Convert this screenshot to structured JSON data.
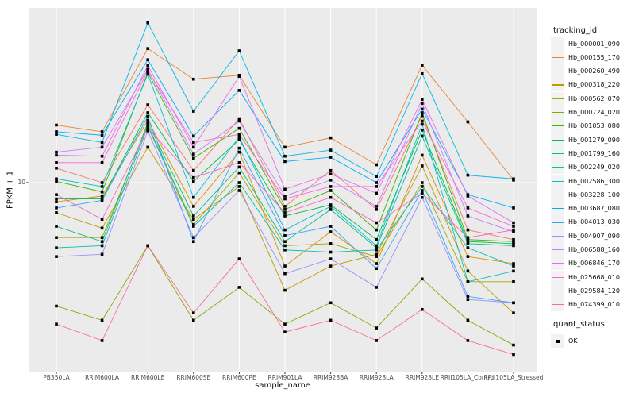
{
  "figure": {
    "y_axis_title": "FPKM + 1",
    "x_axis_title": "sample_name"
  },
  "legend": {
    "tracking_title": "tracking_id",
    "quant_title": "quant_status",
    "quant_ok_label": "OK",
    "key_background": "#F2F2F2"
  },
  "chart_data": {
    "type": "line",
    "title": "",
    "xlabel": "sample_name",
    "ylabel": "FPKM + 1",
    "yscale": "log10",
    "yticks": [
      10
    ],
    "ylim": [
      2.3,
      39.3
    ],
    "grid": true,
    "legend_position": "right",
    "panel_bg": "#EBEBEB",
    "grid_color": "#FFFFFF",
    "tick_color": "#333333",
    "point_shape": "filled-square",
    "point_color": "#000000",
    "quant_status": "OK",
    "categories": [
      "PB350LA",
      "RRIM600LA",
      "RRIM600LE",
      "RRIM600SE",
      "RRIM600PE",
      "RRIM901LA",
      "RRIM928BA",
      "RRIM928LA",
      "RRIM928LE",
      "RRII105LA_Control",
      "RRII105LA_Stressed"
    ],
    "series": [
      {
        "name": "Hb_000001_090",
        "color": "#F8766D",
        "values": [
          11.2,
          10.0,
          18.4,
          11.0,
          16.5,
          8.3,
          11.0,
          8.1,
          16.9,
          6.9,
          6.4
        ]
      },
      {
        "name": "Hb_000155_170",
        "color": "#EA8331",
        "values": [
          15.7,
          14.9,
          28.6,
          22.5,
          23.2,
          13.2,
          14.2,
          11.5,
          25.1,
          16.1,
          10.2
        ]
      },
      {
        "name": "Hb_000260_490",
        "color": "#D89000",
        "values": [
          8.6,
          9.0,
          16.3,
          8.3,
          12.7,
          5.2,
          6.8,
          5.3,
          12.4,
          5.6,
          5.3
        ]
      },
      {
        "name": "Hb_000318_220",
        "color": "#C09B00",
        "values": [
          7.9,
          7.0,
          13.2,
          7.5,
          9.7,
          4.3,
          5.2,
          5.7,
          11.4,
          5.0,
          3.6
        ]
      },
      {
        "name": "Hb_000562_070",
        "color": "#A3A500",
        "values": [
          6.5,
          6.5,
          15.7,
          7.2,
          10.8,
          6.1,
          6.2,
          5.6,
          10.0,
          4.6,
          4.6
        ]
      },
      {
        "name": "Hb_000724_020",
        "color": "#7CAE00",
        "values": [
          3.8,
          3.4,
          6.1,
          3.4,
          4.4,
          3.3,
          3.9,
          3.2,
          4.7,
          3.4,
          2.8
        ]
      },
      {
        "name": "Hb_001053_080",
        "color": "#39B600",
        "values": [
          10.1,
          9.3,
          23.7,
          12.1,
          15.3,
          8.1,
          9.4,
          6.9,
          17.3,
          6.4,
          6.3
        ]
      },
      {
        "name": "Hb_001279_090",
        "color": "#00BB4E",
        "values": [
          8.8,
          8.8,
          17.3,
          10.1,
          14.0,
          7.7,
          8.4,
          6.4,
          15.1,
          6.3,
          6.2
        ]
      },
      {
        "name": "Hb_001799_160",
        "color": "#00C087",
        "values": [
          7.1,
          6.3,
          16.0,
          7.7,
          11.3,
          6.3,
          8.1,
          6.0,
          14.4,
          6.2,
          6.1
        ]
      },
      {
        "name": "Hb_002249_020",
        "color": "#00C0B2",
        "values": [
          6.0,
          6.1,
          15.5,
          7.1,
          10.0,
          5.9,
          5.8,
          5.9,
          9.7,
          6.0,
          5.2
        ]
      },
      {
        "name": "Hb_002586_300",
        "color": "#00BFD3",
        "values": [
          10.3,
          9.7,
          23.4,
          8.9,
          14.3,
          6.9,
          8.3,
          6.1,
          15.8,
          4.6,
          5.0
        ]
      },
      {
        "name": "Hb_003228_100",
        "color": "#00B8E7",
        "values": [
          14.6,
          13.7,
          35.0,
          17.5,
          28.1,
          12.3,
          12.9,
          10.5,
          23.5,
          10.6,
          10.3
        ]
      },
      {
        "name": "Hb_003687_080",
        "color": "#00ACFC",
        "values": [
          14.9,
          14.5,
          26.2,
          14.4,
          20.6,
          11.8,
          12.2,
          10.0,
          17.8,
          9.1,
          8.2
        ]
      },
      {
        "name": "Hb_004013_030",
        "color": "#35A2FF",
        "values": [
          8.2,
          8.7,
          16.8,
          6.3,
          13.1,
          6.6,
          7.1,
          5.1,
          9.4,
          4.1,
          3.9
        ]
      },
      {
        "name": "Hb_004907_090",
        "color": "#9590FF",
        "values": [
          5.6,
          5.7,
          15.0,
          6.5,
          9.4,
          4.9,
          5.5,
          4.4,
          8.9,
          4.0,
          3.9
        ]
      },
      {
        "name": "Hb_006588_160",
        "color": "#C77CFF",
        "values": [
          12.7,
          13.2,
          24.3,
          12.5,
          16.2,
          9.0,
          10.2,
          8.3,
          18.6,
          7.7,
          6.8
        ]
      },
      {
        "name": "Hb_006846_170",
        "color": "#E76BF3",
        "values": [
          12.4,
          12.3,
          25.0,
          13.2,
          23.0,
          9.5,
          10.7,
          9.2,
          19.2,
          9.0,
          7.3
        ]
      },
      {
        "name": "Hb_025668_010",
        "color": "#FA62DB",
        "values": [
          11.7,
          11.7,
          24.0,
          13.7,
          14.6,
          8.8,
          9.7,
          9.7,
          16.2,
          8.2,
          7.1
        ]
      },
      {
        "name": "Hb_029584_120",
        "color": "#FF61C2",
        "values": [
          9.1,
          7.5,
          15.3,
          10.4,
          11.7,
          7.9,
          8.9,
          7.3,
          9.2,
          6.5,
          6.9
        ]
      },
      {
        "name": "Hb_074399_010",
        "color": "#FF6A98",
        "values": [
          3.3,
          2.9,
          6.1,
          3.6,
          5.5,
          3.1,
          3.4,
          2.9,
          3.7,
          2.9,
          2.6
        ]
      }
    ]
  }
}
